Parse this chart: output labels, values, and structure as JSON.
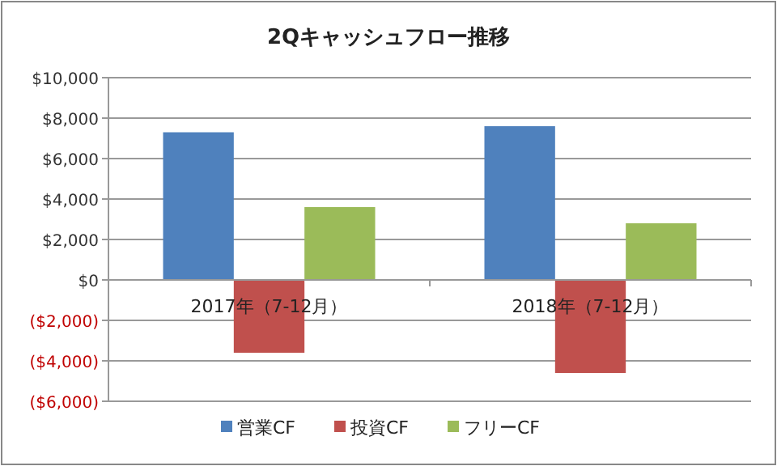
{
  "chart_data": {
    "type": "bar",
    "title": "2Qキャッシュフロー推移",
    "categories": [
      "2017年（7-12月）",
      "2018年（7-12月）"
    ],
    "series": [
      {
        "name": "営業CF",
        "color": "#4f81bd",
        "values": [
          7300,
          7600
        ]
      },
      {
        "name": "投資CF",
        "color": "#c0504d",
        "values": [
          -3600,
          -4600
        ]
      },
      {
        "name": "フリーCF",
        "color": "#9bbb59",
        "values": [
          3600,
          2800
        ]
      }
    ],
    "ylim": [
      -6000,
      10000
    ],
    "yticks": [
      {
        "value": -6000,
        "label": "($6,000)"
      },
      {
        "value": -4000,
        "label": "($4,000)"
      },
      {
        "value": -2000,
        "label": "($2,000)"
      },
      {
        "value": 0,
        "label": "$0"
      },
      {
        "value": 2000,
        "label": "$2,000"
      },
      {
        "value": 4000,
        "label": "$4,000"
      },
      {
        "value": 6000,
        "label": "$6,000"
      },
      {
        "value": 8000,
        "label": "$8,000"
      },
      {
        "value": 10000,
        "label": "$10,000"
      }
    ],
    "grid": "y",
    "legend": "bottom"
  }
}
